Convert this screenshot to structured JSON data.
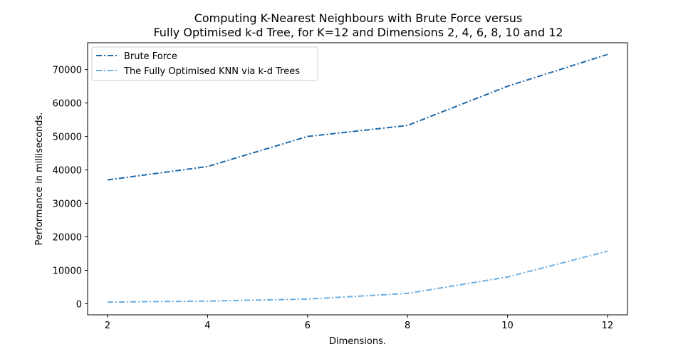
{
  "chart_data": {
    "type": "line",
    "title_line1": "Computing K-Nearest Neighbours with Brute Force versus",
    "title_line2": "Fully Optimised k-d Tree, for K=12 and Dimensions 2, 4, 6, 8, 10 and 12",
    "xlabel": "Dimensions.",
    "ylabel": "Performance in milliseconds.",
    "x": [
      2,
      4,
      6,
      8,
      10,
      12
    ],
    "xticks": [
      2,
      4,
      6,
      8,
      10,
      12
    ],
    "yticks": [
      0,
      10000,
      20000,
      30000,
      40000,
      50000,
      60000,
      70000
    ],
    "xlim": [
      1.6,
      12.4
    ],
    "ylim": [
      -3300,
      78000
    ],
    "grid": false,
    "legend_position": "top-left",
    "series": [
      {
        "name": "Brute Force",
        "color": "#1f69a8",
        "values": [
          37000,
          41000,
          50000,
          53300,
          65000,
          74500
        ]
      },
      {
        "name": "The Fully Optimised KNN via k-d Trees",
        "color": "#6aaee2",
        "values": [
          500,
          800,
          1400,
          3100,
          8000,
          15700
        ]
      }
    ]
  }
}
